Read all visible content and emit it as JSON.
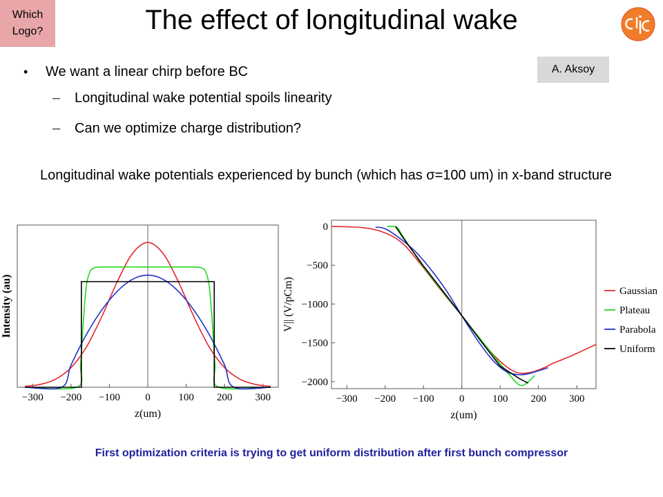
{
  "logo_placeholder": "Which\nLogo?",
  "slide_title": "The effect of longitudinal wake",
  "author": "A. Aksoy",
  "bullets": {
    "main": "We want a linear chirp before BC",
    "subs": [
      "Longitudinal wake potential spoils linearity",
      "Can we optimize charge distribution?"
    ]
  },
  "caption": "Longitudinal wake potentials experienced by bunch (which has σ=100 um) in x-band structure",
  "footer": "First optimization criteria is trying to get uniform distribution after first bunch compressor",
  "colors": {
    "gaussian": "#e3262b",
    "plateau": "#22d81f",
    "parabola": "#2030c8",
    "uniform": "#000000",
    "accent": "#1f1f9e",
    "logo_box": "#e8a6a8",
    "author_box": "#d9d9d9"
  },
  "chart_data": [
    {
      "type": "line",
      "xlabel": "z(um)",
      "ylabel": "Intensity (au)",
      "xlim": [
        -340,
        340
      ],
      "ylim": [
        0,
        1.12
      ],
      "x_ticks": [
        -300,
        -200,
        -100,
        0,
        100,
        200,
        300
      ],
      "series": [
        {
          "name": "Gaussian",
          "x": [
            -320,
            -280,
            -240,
            -200,
            -160,
            -120,
            -80,
            -40,
            0,
            40,
            80,
            120,
            160,
            200,
            240,
            280,
            320
          ],
          "y": [
            0.006,
            0.02,
            0.056,
            0.135,
            0.278,
            0.487,
            0.726,
            0.923,
            1.0,
            0.923,
            0.726,
            0.487,
            0.278,
            0.135,
            0.056,
            0.02,
            0.006
          ]
        },
        {
          "name": "Plateau",
          "x": [
            -320,
            -185,
            -175,
            -168,
            -160,
            -150,
            -140,
            -120,
            0,
            120,
            140,
            150,
            160,
            168,
            175,
            185,
            320
          ],
          "y": [
            0,
            0,
            0.16,
            0.45,
            0.7,
            0.8,
            0.823,
            0.83,
            0.83,
            0.83,
            0.823,
            0.8,
            0.7,
            0.45,
            0.16,
            0,
            0
          ],
          "smooth": true
        },
        {
          "name": "Parabola",
          "x": [
            -320,
            -224,
            -200,
            -160,
            -120,
            -80,
            -40,
            0,
            40,
            80,
            120,
            160,
            200,
            224,
            320
          ],
          "y": [
            0,
            0,
            0.153,
            0.364,
            0.533,
            0.661,
            0.745,
            0.774,
            0.745,
            0.661,
            0.533,
            0.364,
            0.153,
            0,
            0
          ]
        },
        {
          "name": "Uniform",
          "x": [
            -320,
            -173,
            -173,
            173,
            173,
            320
          ],
          "y": [
            0,
            0,
            0.729,
            0.729,
            0,
            0
          ]
        }
      ]
    },
    {
      "type": "line",
      "xlabel": "z(um)",
      "ylabel": "V|| (V/pCm)",
      "xlim": [
        -340,
        350
      ],
      "ylim": [
        -2090,
        80
      ],
      "x_ticks": [
        -300,
        -200,
        -100,
        0,
        100,
        200,
        300
      ],
      "y_ticks": [
        0,
        -500,
        -1000,
        -1500,
        -2000
      ],
      "legend_position": "right",
      "series": [
        {
          "name": "Gaussian",
          "x": [
            -340,
            -300,
            -260,
            -220,
            -180,
            -150,
            -120,
            -80,
            -40,
            0,
            40,
            80,
            120,
            150,
            180,
            210,
            240,
            280,
            320,
            350
          ],
          "y": [
            0,
            -5,
            -15,
            -50,
            -130,
            -240,
            -410,
            -660,
            -910,
            -1150,
            -1400,
            -1640,
            -1820,
            -1890,
            -1880,
            -1830,
            -1760,
            -1680,
            -1590,
            -1520
          ]
        },
        {
          "name": "Plateau",
          "x": [
            -195,
            -170,
            -155,
            -140,
            -100,
            -50,
            0,
            50,
            100,
            140,
            155,
            170,
            190
          ],
          "y": [
            0,
            -10,
            -120,
            -230,
            -520,
            -840,
            -1150,
            -1460,
            -1770,
            -2000,
            -2050,
            -2015,
            -1920
          ]
        },
        {
          "name": "Parabola",
          "x": [
            -225,
            -200,
            -160,
            -120,
            -80,
            -40,
            0,
            40,
            80,
            120,
            160,
            200,
            225
          ],
          "y": [
            -10,
            -30,
            -160,
            -330,
            -560,
            -830,
            -1150,
            -1460,
            -1720,
            -1880,
            -1910,
            -1860,
            -1820
          ]
        },
        {
          "name": "Uniform",
          "x": [
            -173,
            -150,
            -100,
            -50,
            0,
            50,
            100,
            150,
            173
          ],
          "y": [
            0,
            -170,
            -510,
            -830,
            -1150,
            -1480,
            -1800,
            -1960,
            -2020
          ]
        }
      ]
    }
  ]
}
